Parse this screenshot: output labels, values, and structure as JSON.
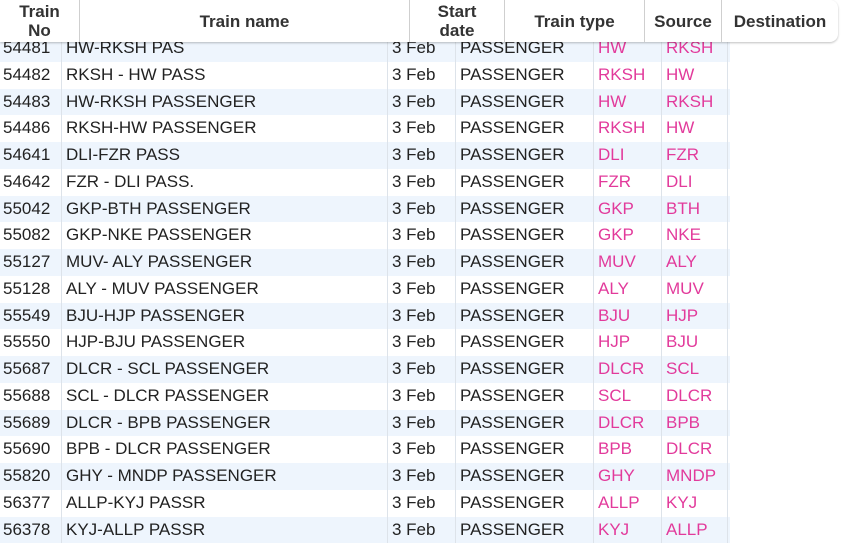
{
  "table": {
    "headers": [
      "Train No",
      "Train name",
      "Start date",
      "Train type",
      "Source",
      "Destination"
    ],
    "rows": [
      [
        "54481",
        "HW-RKSH PAS",
        "3 Feb",
        "PASSENGER",
        "HW",
        "RKSH"
      ],
      [
        "54482",
        "RKSH - HW PASS",
        "3 Feb",
        "PASSENGER",
        "RKSH",
        "HW"
      ],
      [
        "54483",
        "HW-RKSH PASSENGER",
        "3 Feb",
        "PASSENGER",
        "HW",
        "RKSH"
      ],
      [
        "54486",
        "RKSH-HW PASSENGER",
        "3 Feb",
        "PASSENGER",
        "RKSH",
        "HW"
      ],
      [
        "54641",
        "DLI-FZR PASS",
        "3 Feb",
        "PASSENGER",
        "DLI",
        "FZR"
      ],
      [
        "54642",
        "FZR - DLI PASS.",
        "3 Feb",
        "PASSENGER",
        "FZR",
        "DLI"
      ],
      [
        "55042",
        "GKP-BTH PASSENGER",
        "3 Feb",
        "PASSENGER",
        "GKP",
        "BTH"
      ],
      [
        "55082",
        "GKP-NKE PASSENGER",
        "3 Feb",
        "PASSENGER",
        "GKP",
        "NKE"
      ],
      [
        "55127",
        "MUV- ALY PASSENGER",
        "3 Feb",
        "PASSENGER",
        "MUV",
        "ALY"
      ],
      [
        "55128",
        "ALY - MUV PASSENGER",
        "3 Feb",
        "PASSENGER",
        "ALY",
        "MUV"
      ],
      [
        "55549",
        "BJU-HJP PASSENGER",
        "3 Feb",
        "PASSENGER",
        "BJU",
        "HJP"
      ],
      [
        "55550",
        "HJP-BJU PASSENGER",
        "3 Feb",
        "PASSENGER",
        "HJP",
        "BJU"
      ],
      [
        "55687",
        "DLCR - SCL PASSENGER",
        "3 Feb",
        "PASSENGER",
        "DLCR",
        "SCL"
      ],
      [
        "55688",
        "SCL - DLCR PASSENGER",
        "3 Feb",
        "PASSENGER",
        "SCL",
        "DLCR"
      ],
      [
        "55689",
        "DLCR - BPB PASSENGER",
        "3 Feb",
        "PASSENGER",
        "DLCR",
        "BPB"
      ],
      [
        "55690",
        "BPB - DLCR PASSENGER",
        "3 Feb",
        "PASSENGER",
        "BPB",
        "DLCR"
      ],
      [
        "55820",
        "GHY - MNDP PASSENGER",
        "3 Feb",
        "PASSENGER",
        "GHY",
        "MNDP"
      ],
      [
        "56377",
        "ALLP-KYJ PASSR",
        "3 Feb",
        "PASSENGER",
        "ALLP",
        "KYJ"
      ],
      [
        "56378",
        "KYJ-ALLP PASSR",
        "3 Feb",
        "PASSENGER",
        "KYJ",
        "ALLP"
      ]
    ]
  }
}
